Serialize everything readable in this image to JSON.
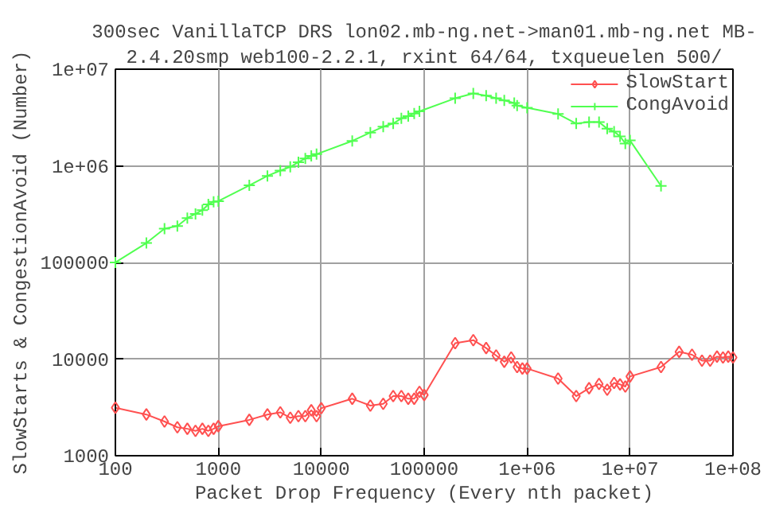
{
  "chart_data": {
    "type": "line",
    "title": "300sec VanillaTCP DRS lon02.mb-ng.net->man01.mb-ng.net MB-",
    "subtitle": "2.4.20smp web100-2.2.1, rxint 64/64, txqueuelen 500/",
    "xlabel": "Packet Drop Frequency (Every nth packet)",
    "ylabel": "SlowStarts & CongestionAvoid (Number)",
    "log": "xy",
    "grid": true,
    "legend": "top right",
    "line_style": "solid",
    "xlim": [
      100,
      100000000
    ],
    "ylim": [
      1000,
      10000000
    ],
    "xticks": [
      100,
      1000,
      10000,
      100000,
      {
        "value": 1000000,
        "label": "1e+06"
      },
      {
        "value": 10000000,
        "label": "1e+07"
      },
      {
        "value": 100000000,
        "label": "1e+08"
      }
    ],
    "yticks": [
      1000,
      10000,
      100000,
      {
        "value": 1000000,
        "label": "1e+06"
      },
      {
        "value": 10000000,
        "label": "1e+07"
      }
    ],
    "series": [
      {
        "name": "SlowStart",
        "color": "#ff5050",
        "marker": "diamond",
        "x": [
          100,
          200,
          300,
          400,
          500,
          600,
          700,
          800,
          900,
          1000,
          2000,
          3000,
          4000,
          5000,
          6000,
          7000,
          8000,
          9000,
          10000,
          20000,
          30000,
          40000,
          50000,
          60000,
          70000,
          80000,
          90000,
          100000,
          200000,
          300000,
          400000,
          500000,
          600000,
          700000,
          800000,
          900000,
          1000000,
          2000000,
          3000000,
          4000000,
          5000000,
          6000000,
          7000000,
          8000000,
          9000000,
          10000000,
          20000000,
          30000000,
          40000000,
          50000000,
          60000000,
          70000000,
          80000000,
          90000000,
          100000000
        ],
        "values": [
          3140,
          2670,
          2260,
          1970,
          1900,
          1810,
          1900,
          1810,
          1900,
          2020,
          2350,
          2670,
          2810,
          2470,
          2570,
          2570,
          2950,
          2570,
          3100,
          3890,
          3300,
          3440,
          4140,
          4140,
          3890,
          3890,
          4580,
          4250,
          14600,
          15700,
          13000,
          10900,
          9390,
          10400,
          8280,
          7980,
          7980,
          6280,
          4140,
          5000,
          5530,
          4820,
          5670,
          5470,
          5200,
          6610,
          8280,
          11900,
          11100,
          9640,
          9640,
          10600,
          10400,
          10600,
          10400
        ]
      },
      {
        "name": "CongAvoid",
        "color": "#50ff50",
        "marker": "cross",
        "x": [
          100,
          200,
          300,
          400,
          500,
          600,
          700,
          800,
          900,
          1000,
          2000,
          3000,
          4000,
          5000,
          6000,
          7000,
          8000,
          9000,
          20000,
          30000,
          40000,
          50000,
          60000,
          70000,
          80000,
          90000,
          200000,
          300000,
          400000,
          500000,
          600000,
          750000,
          800000,
          1000000,
          2000000,
          3000000,
          4000000,
          5000000,
          6000000,
          7000000,
          8000000,
          9000000,
          10000000,
          20000000
        ],
        "values": [
          100000,
          159000,
          224000,
          238000,
          288000,
          318000,
          348000,
          399000,
          425000,
          431000,
          628000,
          787000,
          893000,
          975000,
          1090000,
          1190000,
          1270000,
          1320000,
          1810000,
          2210000,
          2540000,
          2740000,
          3100000,
          3270000,
          3480000,
          3660000,
          5000000,
          5610000,
          5330000,
          5000000,
          4760000,
          4470000,
          4200000,
          3990000,
          3440000,
          2740000,
          2840000,
          2840000,
          2420000,
          2260000,
          2020000,
          1700000,
          1830000,
          619000
        ]
      }
    ]
  }
}
